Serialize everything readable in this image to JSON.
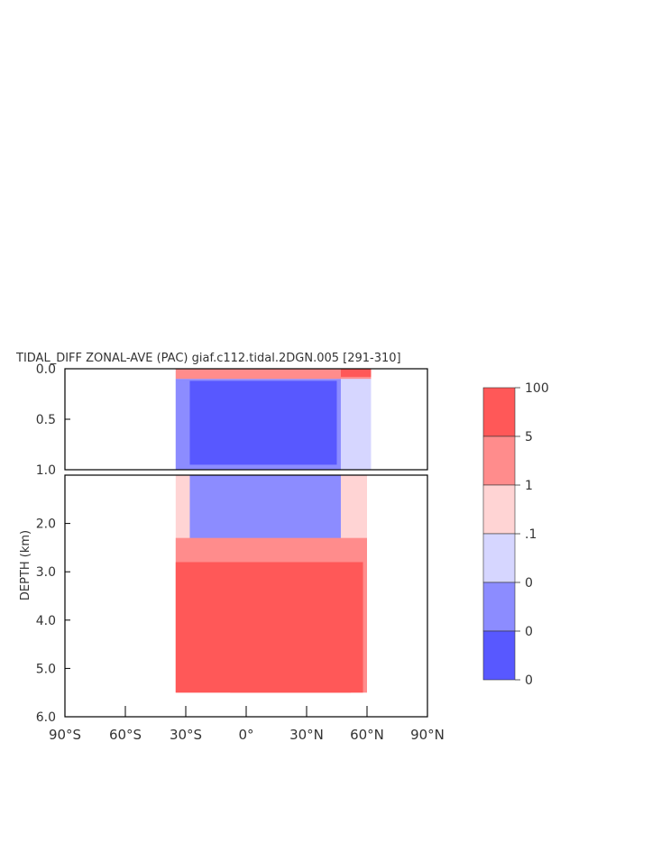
{
  "chart_data": {
    "type": "heatmap",
    "title": "TIDAL_DIFF ZONAL-AVE (PAC) giaf.c112.tidal.2DGN.005 [291-310]",
    "ylabel": "DEPTH (km)",
    "xlabel": "",
    "x_ticks": [
      "90°S",
      "60°S",
      "30°S",
      "0°",
      "30°N",
      "60°N",
      "90°N"
    ],
    "x_tick_values": [
      -90,
      -60,
      -30,
      0,
      30,
      60,
      90
    ],
    "upper_panel": {
      "ylim": [
        0.0,
        1.0
      ],
      "y_ticks": [
        "0.0",
        "0.5",
        "1.0"
      ],
      "y_tick_values": [
        0.0,
        0.5,
        1.0
      ]
    },
    "lower_panel": {
      "ylim": [
        1.0,
        6.0
      ],
      "y_ticks": [
        "2.0",
        "3.0",
        "4.0",
        "5.0",
        "6.0"
      ],
      "y_tick_values": [
        2.0,
        3.0,
        4.0,
        5.0,
        6.0
      ]
    },
    "data_extent": {
      "lat_min": -35,
      "lat_max": 62,
      "depth_max": 5.5
    },
    "legend": {
      "position": "right",
      "levels": [
        "100",
        "5",
        "1",
        ".1",
        "0",
        "0",
        "0"
      ],
      "colors": [
        "#ff5858",
        "#ff8c8c",
        "#ffd4d4",
        "#d6d6ff",
        "#8c8cff",
        "#5858ff"
      ]
    },
    "regions": [
      {
        "panel": "upper",
        "lat": [
          -35,
          62
        ],
        "depth": [
          0.0,
          1.0
        ],
        "class": 3
      },
      {
        "panel": "upper",
        "lat": [
          -35,
          47
        ],
        "depth": [
          0.1,
          1.0
        ],
        "class": 4
      },
      {
        "panel": "upper",
        "lat": [
          -28,
          45
        ],
        "depth": [
          0.12,
          0.95
        ],
        "class": 5
      },
      {
        "panel": "upper",
        "lat": [
          -35,
          62
        ],
        "depth": [
          0.0,
          0.1
        ],
        "class": 1
      },
      {
        "panel": "upper",
        "lat": [
          47,
          62
        ],
        "depth": [
          0.0,
          0.08
        ],
        "class": 0
      },
      {
        "panel": "lower",
        "lat": [
          -35,
          60
        ],
        "depth": [
          1.0,
          5.5
        ],
        "class": 2
      },
      {
        "panel": "lower",
        "lat": [
          -28,
          47
        ],
        "depth": [
          1.0,
          2.4
        ],
        "class": 4
      },
      {
        "panel": "lower",
        "lat": [
          -35,
          60
        ],
        "depth": [
          2.3,
          5.5
        ],
        "class": 1
      },
      {
        "panel": "lower",
        "lat": [
          -35,
          58
        ],
        "depth": [
          2.8,
          5.5
        ],
        "class": 0
      },
      {
        "panel": "lower",
        "lat": [
          -8,
          52
        ],
        "depth": [
          4.3,
          5.5
        ],
        "class": 0
      }
    ]
  }
}
